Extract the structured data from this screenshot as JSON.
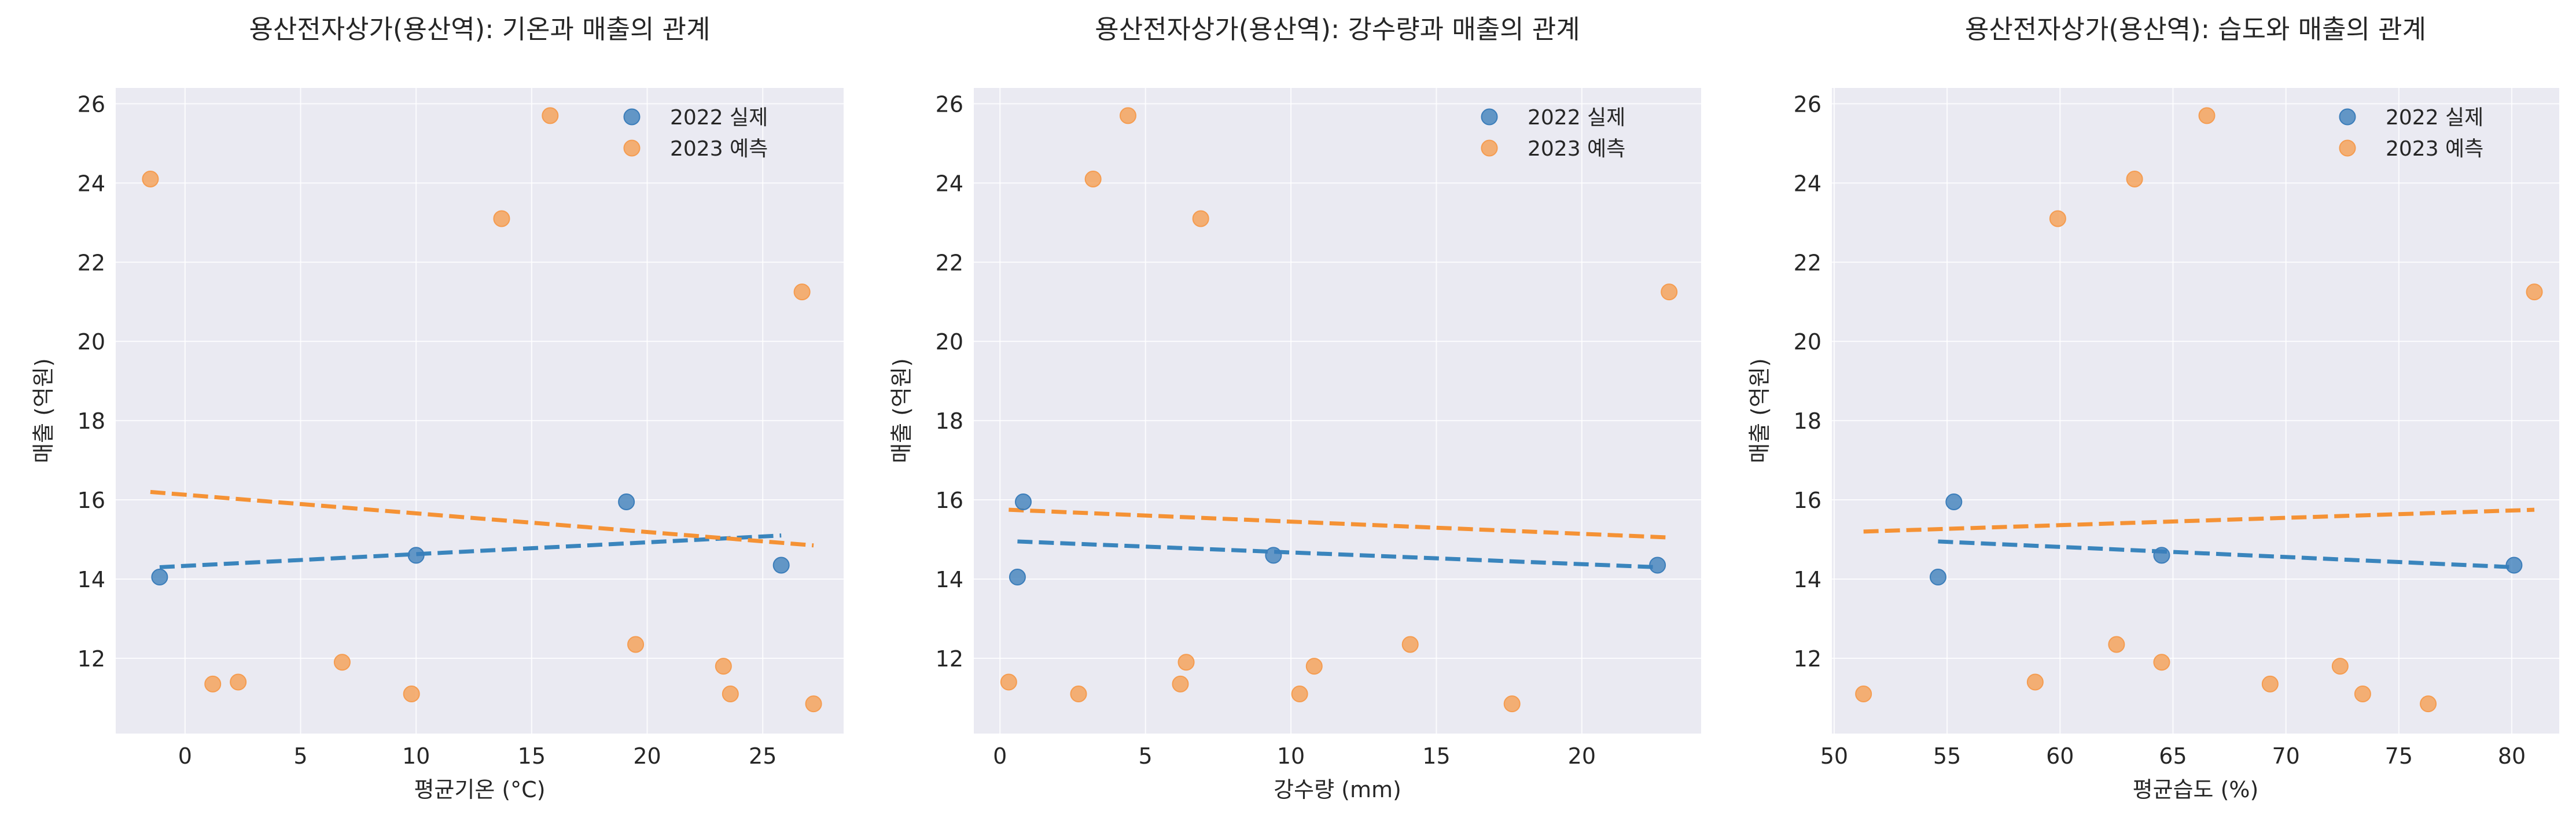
{
  "colors": {
    "background": "#ffffff",
    "plot_bg": "#eaeaf2",
    "grid": "#ffffff",
    "series_2022": "#3b7dba",
    "series_2023": "#f59c50",
    "fit_2022": "#3a85bd",
    "fit_2023": "#f59235"
  },
  "chart_data": [
    {
      "type": "scatter",
      "title": "용산전자상가(용산역): 기온과 매출의 관계",
      "xlabel": "평균기온 (°C)",
      "ylabel": "매출 (억원)",
      "xlim": [
        -3,
        28.5
      ],
      "ylim": [
        10.1,
        26.4
      ],
      "xticks": [
        0,
        5,
        10,
        15,
        20,
        25
      ],
      "yticks": [
        12,
        14,
        16,
        18,
        20,
        22,
        24,
        26
      ],
      "grid": true,
      "legend": "top-right",
      "series": [
        {
          "name": "2022 실제",
          "x": [
            -1.1,
            10.0,
            19.1,
            25.8
          ],
          "y": [
            14.05,
            14.6,
            15.95,
            14.35
          ],
          "fit": {
            "x": [
              -1.1,
              25.8
            ],
            "y": [
              14.3,
              15.1
            ]
          }
        },
        {
          "name": "2023 예측",
          "x": [
            -1.5,
            1.2,
            2.3,
            6.8,
            9.8,
            13.7,
            15.8,
            19.5,
            23.3,
            23.6,
            26.7,
            27.2
          ],
          "y": [
            24.1,
            11.35,
            11.4,
            11.9,
            11.1,
            23.1,
            25.7,
            12.35,
            11.8,
            11.1,
            21.25,
            10.85
          ],
          "fit": {
            "x": [
              -1.5,
              27.2
            ],
            "y": [
              16.2,
              14.85
            ]
          }
        }
      ]
    },
    {
      "type": "scatter",
      "title": "용산전자상가(용산역): 강수량과 매출의 관계",
      "xlabel": "강수량 (mm)",
      "ylabel": "매출 (억원)",
      "xlim": [
        -0.9,
        24.1
      ],
      "ylim": [
        10.1,
        26.4
      ],
      "xticks": [
        0,
        5,
        10,
        15,
        20
      ],
      "yticks": [
        12,
        14,
        16,
        18,
        20,
        22,
        24,
        26
      ],
      "grid": true,
      "legend": "top-right",
      "series": [
        {
          "name": "2022 실제",
          "x": [
            0.6,
            0.8,
            9.4,
            22.6
          ],
          "y": [
            14.05,
            15.95,
            14.6,
            14.35
          ],
          "fit": {
            "x": [
              0.6,
              22.6
            ],
            "y": [
              14.95,
              14.3
            ]
          }
        },
        {
          "name": "2023 예측",
          "x": [
            0.3,
            2.7,
            3.2,
            4.4,
            6.2,
            6.4,
            6.9,
            10.3,
            10.8,
            14.1,
            17.6,
            23.0
          ],
          "y": [
            11.4,
            11.1,
            24.1,
            25.7,
            11.35,
            11.9,
            23.1,
            11.1,
            11.8,
            12.35,
            10.85,
            21.25
          ],
          "fit": {
            "x": [
              0.3,
              23.0
            ],
            "y": [
              15.75,
              15.05
            ]
          }
        }
      ]
    },
    {
      "type": "scatter",
      "title": "용산전자상가(용산역): 습도와 매출의 관계",
      "xlabel": "평균습도 (%)",
      "ylabel": "매출 (억원)",
      "xlim": [
        49.9,
        82.1
      ],
      "ylim": [
        10.1,
        26.4
      ],
      "xticks": [
        50,
        55,
        60,
        65,
        70,
        75,
        80
      ],
      "yticks": [
        12,
        14,
        16,
        18,
        20,
        22,
        24,
        26
      ],
      "grid": true,
      "legend": "top-right",
      "series": [
        {
          "name": "2022 실제",
          "x": [
            54.6,
            55.3,
            64.5,
            80.1
          ],
          "y": [
            14.05,
            15.95,
            14.6,
            14.35
          ],
          "fit": {
            "x": [
              54.6,
              80.1
            ],
            "y": [
              14.95,
              14.3
            ]
          }
        },
        {
          "name": "2023 예측",
          "x": [
            51.3,
            58.9,
            59.9,
            62.5,
            63.3,
            64.5,
            66.5,
            69.3,
            72.4,
            73.4,
            76.3,
            81.0
          ],
          "y": [
            11.1,
            11.4,
            23.1,
            12.35,
            24.1,
            11.9,
            25.7,
            11.35,
            11.8,
            11.1,
            10.85,
            21.25
          ],
          "fit": {
            "x": [
              51.3,
              81.0
            ],
            "y": [
              15.2,
              15.75
            ]
          }
        }
      ]
    }
  ]
}
